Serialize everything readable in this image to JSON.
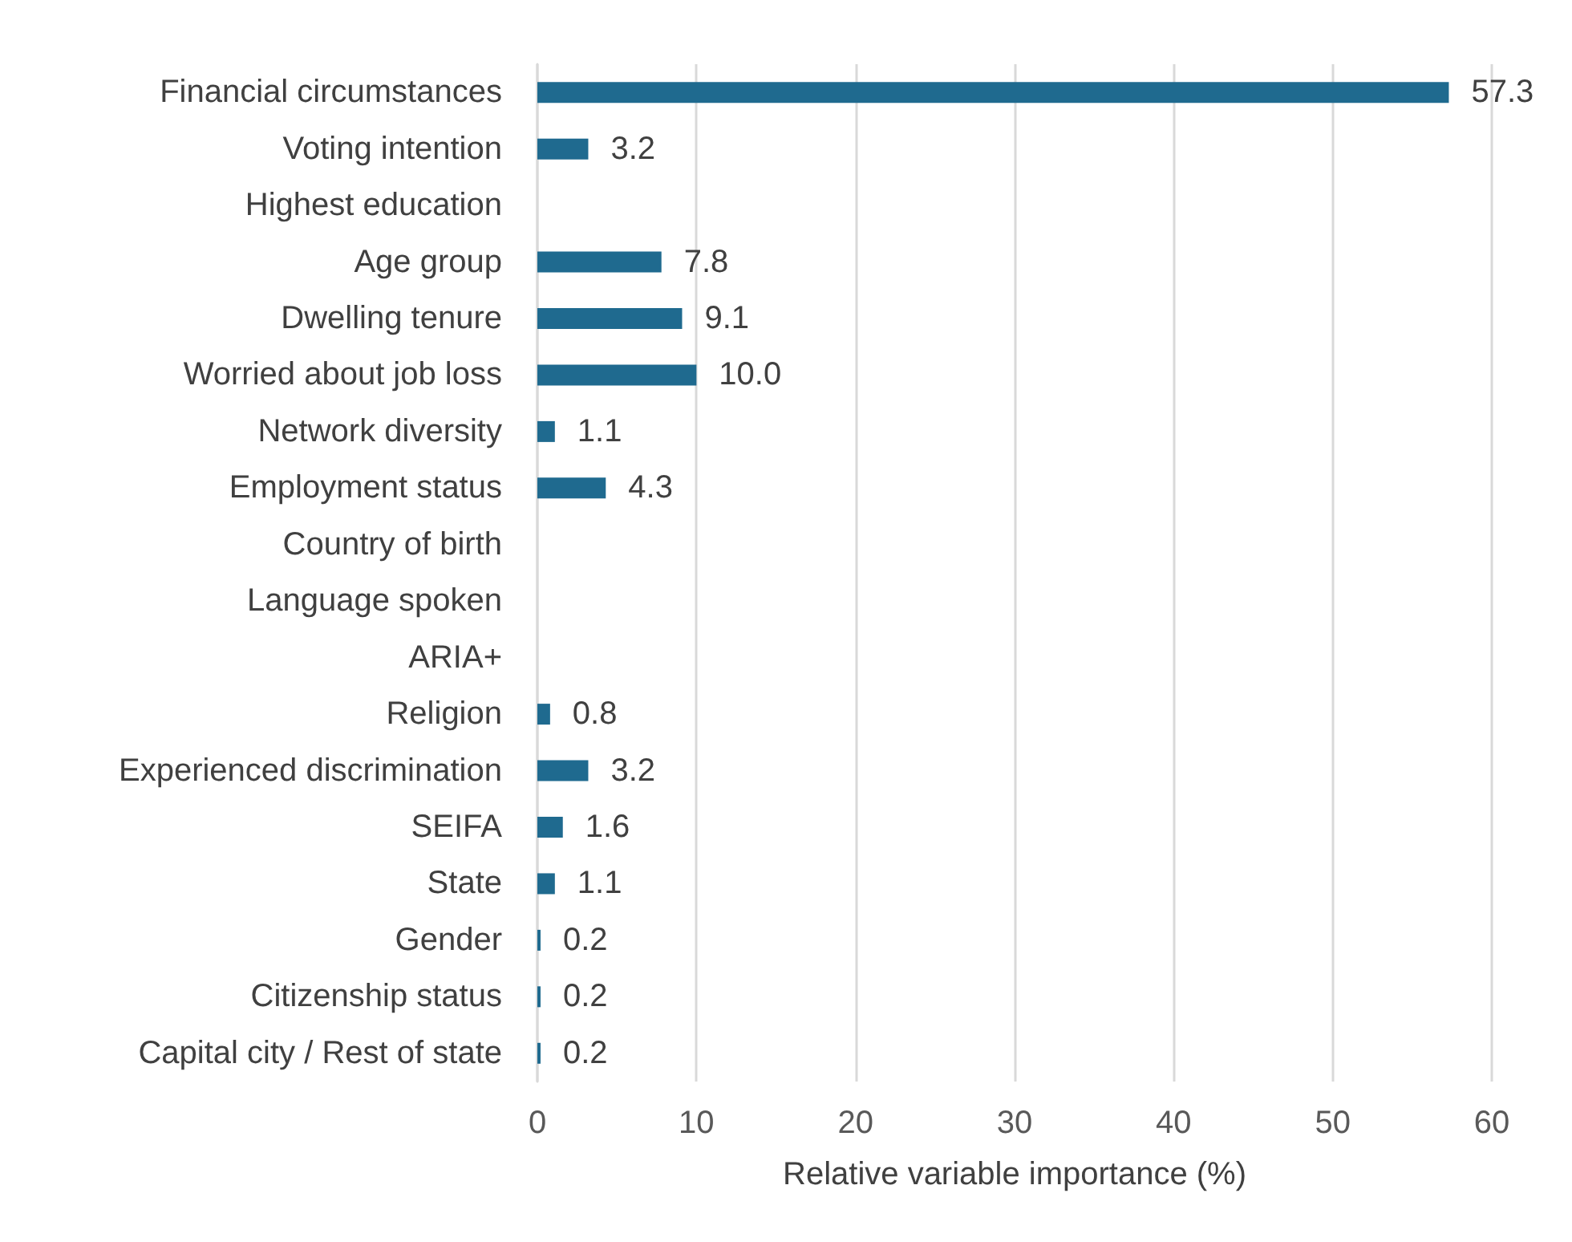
{
  "chart_data": {
    "type": "bar",
    "orientation": "horizontal",
    "xlabel": "Relative variable importance (%)",
    "categories": [
      "Financial circumstances",
      "Voting intention",
      "Highest education",
      "Age group",
      "Dwelling tenure",
      "Worried about job loss",
      "Network diversity",
      "Employment status",
      "Country of birth",
      "Language spoken",
      "ARIA+",
      "Religion",
      "Experienced discrimination",
      "SEIFA",
      "State",
      "Gender",
      "Citizenship status",
      "Capital city / Rest of state"
    ],
    "values": [
      57.3,
      3.2,
      null,
      7.8,
      9.1,
      10.0,
      1.1,
      4.3,
      null,
      null,
      null,
      0.8,
      3.2,
      1.6,
      1.1,
      0.2,
      0.2,
      0.2
    ],
    "value_labels": [
      "57.3",
      "3.2",
      null,
      "7.8",
      "9.1",
      "10.0",
      "1.1",
      "4.3",
      null,
      null,
      null,
      "0.8",
      "3.2",
      "1.6",
      "1.1",
      "0.2",
      "0.2",
      "0.2"
    ],
    "color": "#1f6a8f",
    "xlim": [
      0,
      60
    ],
    "xticks": [
      0,
      10,
      20,
      30,
      40,
      50,
      60
    ],
    "grid": "x"
  }
}
